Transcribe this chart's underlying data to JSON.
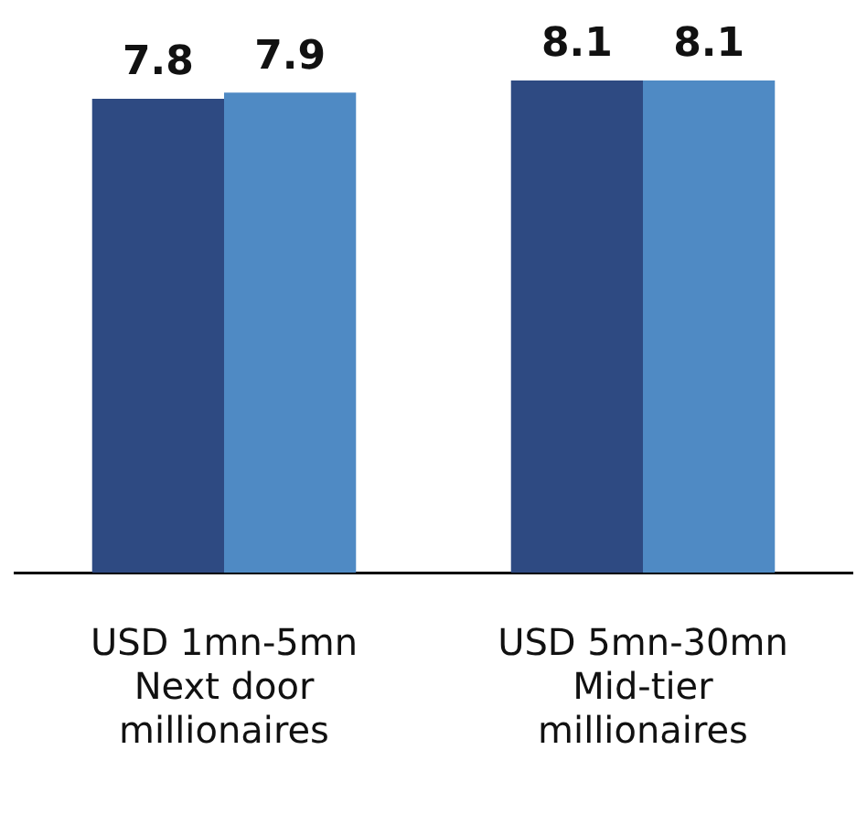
{
  "chart_data": {
    "type": "bar",
    "categories": [
      "USD 1mn-5mn\nNext door\nmillionaires",
      "USD 5mn-30mn\nMid-tier\nmillionaires"
    ],
    "series": [
      {
        "color": "#2e4a82",
        "values": [
          7.8,
          8.1
        ]
      },
      {
        "color": "#4f8ac4",
        "values": [
          7.9,
          8.1
        ]
      }
    ],
    "data_labels": true,
    "legend": false,
    "grid": false
  }
}
